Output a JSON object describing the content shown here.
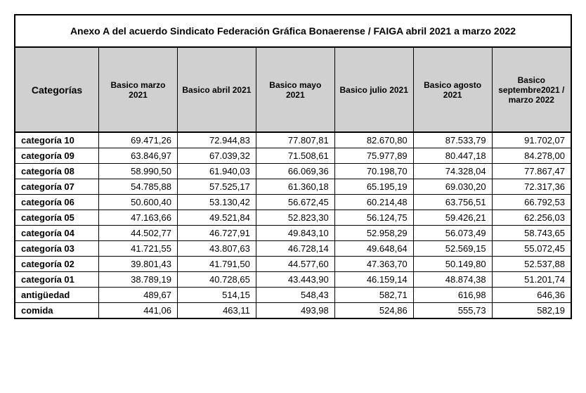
{
  "title": "Anexo A del acuerdo Sindicato Federación Gráfica Bonaerense / FAIGA  abril 2021 a marzo 2022",
  "columns": [
    "Categorías",
    "Basico marzo 2021",
    "Basico abril  2021",
    "Basico mayo 2021",
    "Basico julio 2021",
    "Basico agosto 2021",
    "Basico septembre2021 / marzo 2022"
  ],
  "rows": [
    {
      "label": "categoría 10",
      "values": [
        "69.471,26",
        "72.944,83",
        "77.807,81",
        "82.670,80",
        "87.533,79",
        "91.702,07"
      ]
    },
    {
      "label": "categoría 09",
      "values": [
        "63.846,97",
        "67.039,32",
        "71.508,61",
        "75.977,89",
        "80.447,18",
        "84.278,00"
      ]
    },
    {
      "label": "categoría 08",
      "values": [
        "58.990,50",
        "61.940,03",
        "66.069,36",
        "70.198,70",
        "74.328,04",
        "77.867,47"
      ]
    },
    {
      "label": "categoría 07",
      "values": [
        "54.785,88",
        "57.525,17",
        "61.360,18",
        "65.195,19",
        "69.030,20",
        "72.317,36"
      ]
    },
    {
      "label": "categoría 06",
      "values": [
        "50.600,40",
        "53.130,42",
        "56.672,45",
        "60.214,48",
        "63.756,51",
        "66.792,53"
      ]
    },
    {
      "label": "categoría 05",
      "values": [
        "47.163,66",
        "49.521,84",
        "52.823,30",
        "56.124,75",
        "59.426,21",
        "62.256,03"
      ]
    },
    {
      "label": "categoría 04",
      "values": [
        "44.502,77",
        "46.727,91",
        "49.843,10",
        "52.958,29",
        "56.073,49",
        "58.743,65"
      ]
    },
    {
      "label": "categoría 03",
      "values": [
        "41.721,55",
        "43.807,63",
        "46.728,14",
        "49.648,64",
        "52.569,15",
        "55.072,45"
      ]
    },
    {
      "label": "categoría 02",
      "values": [
        "39.801,43",
        "41.791,50",
        "44.577,60",
        "47.363,70",
        "50.149,80",
        "52.537,88"
      ]
    },
    {
      "label": "categoría 01",
      "values": [
        "38.789,19",
        "40.728,65",
        "43.443,90",
        "46.159,14",
        "48.874,38",
        "51.201,74"
      ]
    },
    {
      "label": "antigüedad",
      "values": [
        "489,67",
        "514,15",
        "548,43",
        "582,71",
        "616,98",
        "646,36"
      ]
    },
    {
      "label": "comida",
      "values": [
        "441,06",
        "463,11",
        "493,98",
        "524,86",
        "555,73",
        "582,19"
      ]
    }
  ],
  "style": {
    "header_bg": "#d0d0d0",
    "border_color": "#000000",
    "title_fontsize": 14,
    "header_fontsize": 12,
    "cell_fontsize": 13,
    "background": "#ffffff"
  }
}
